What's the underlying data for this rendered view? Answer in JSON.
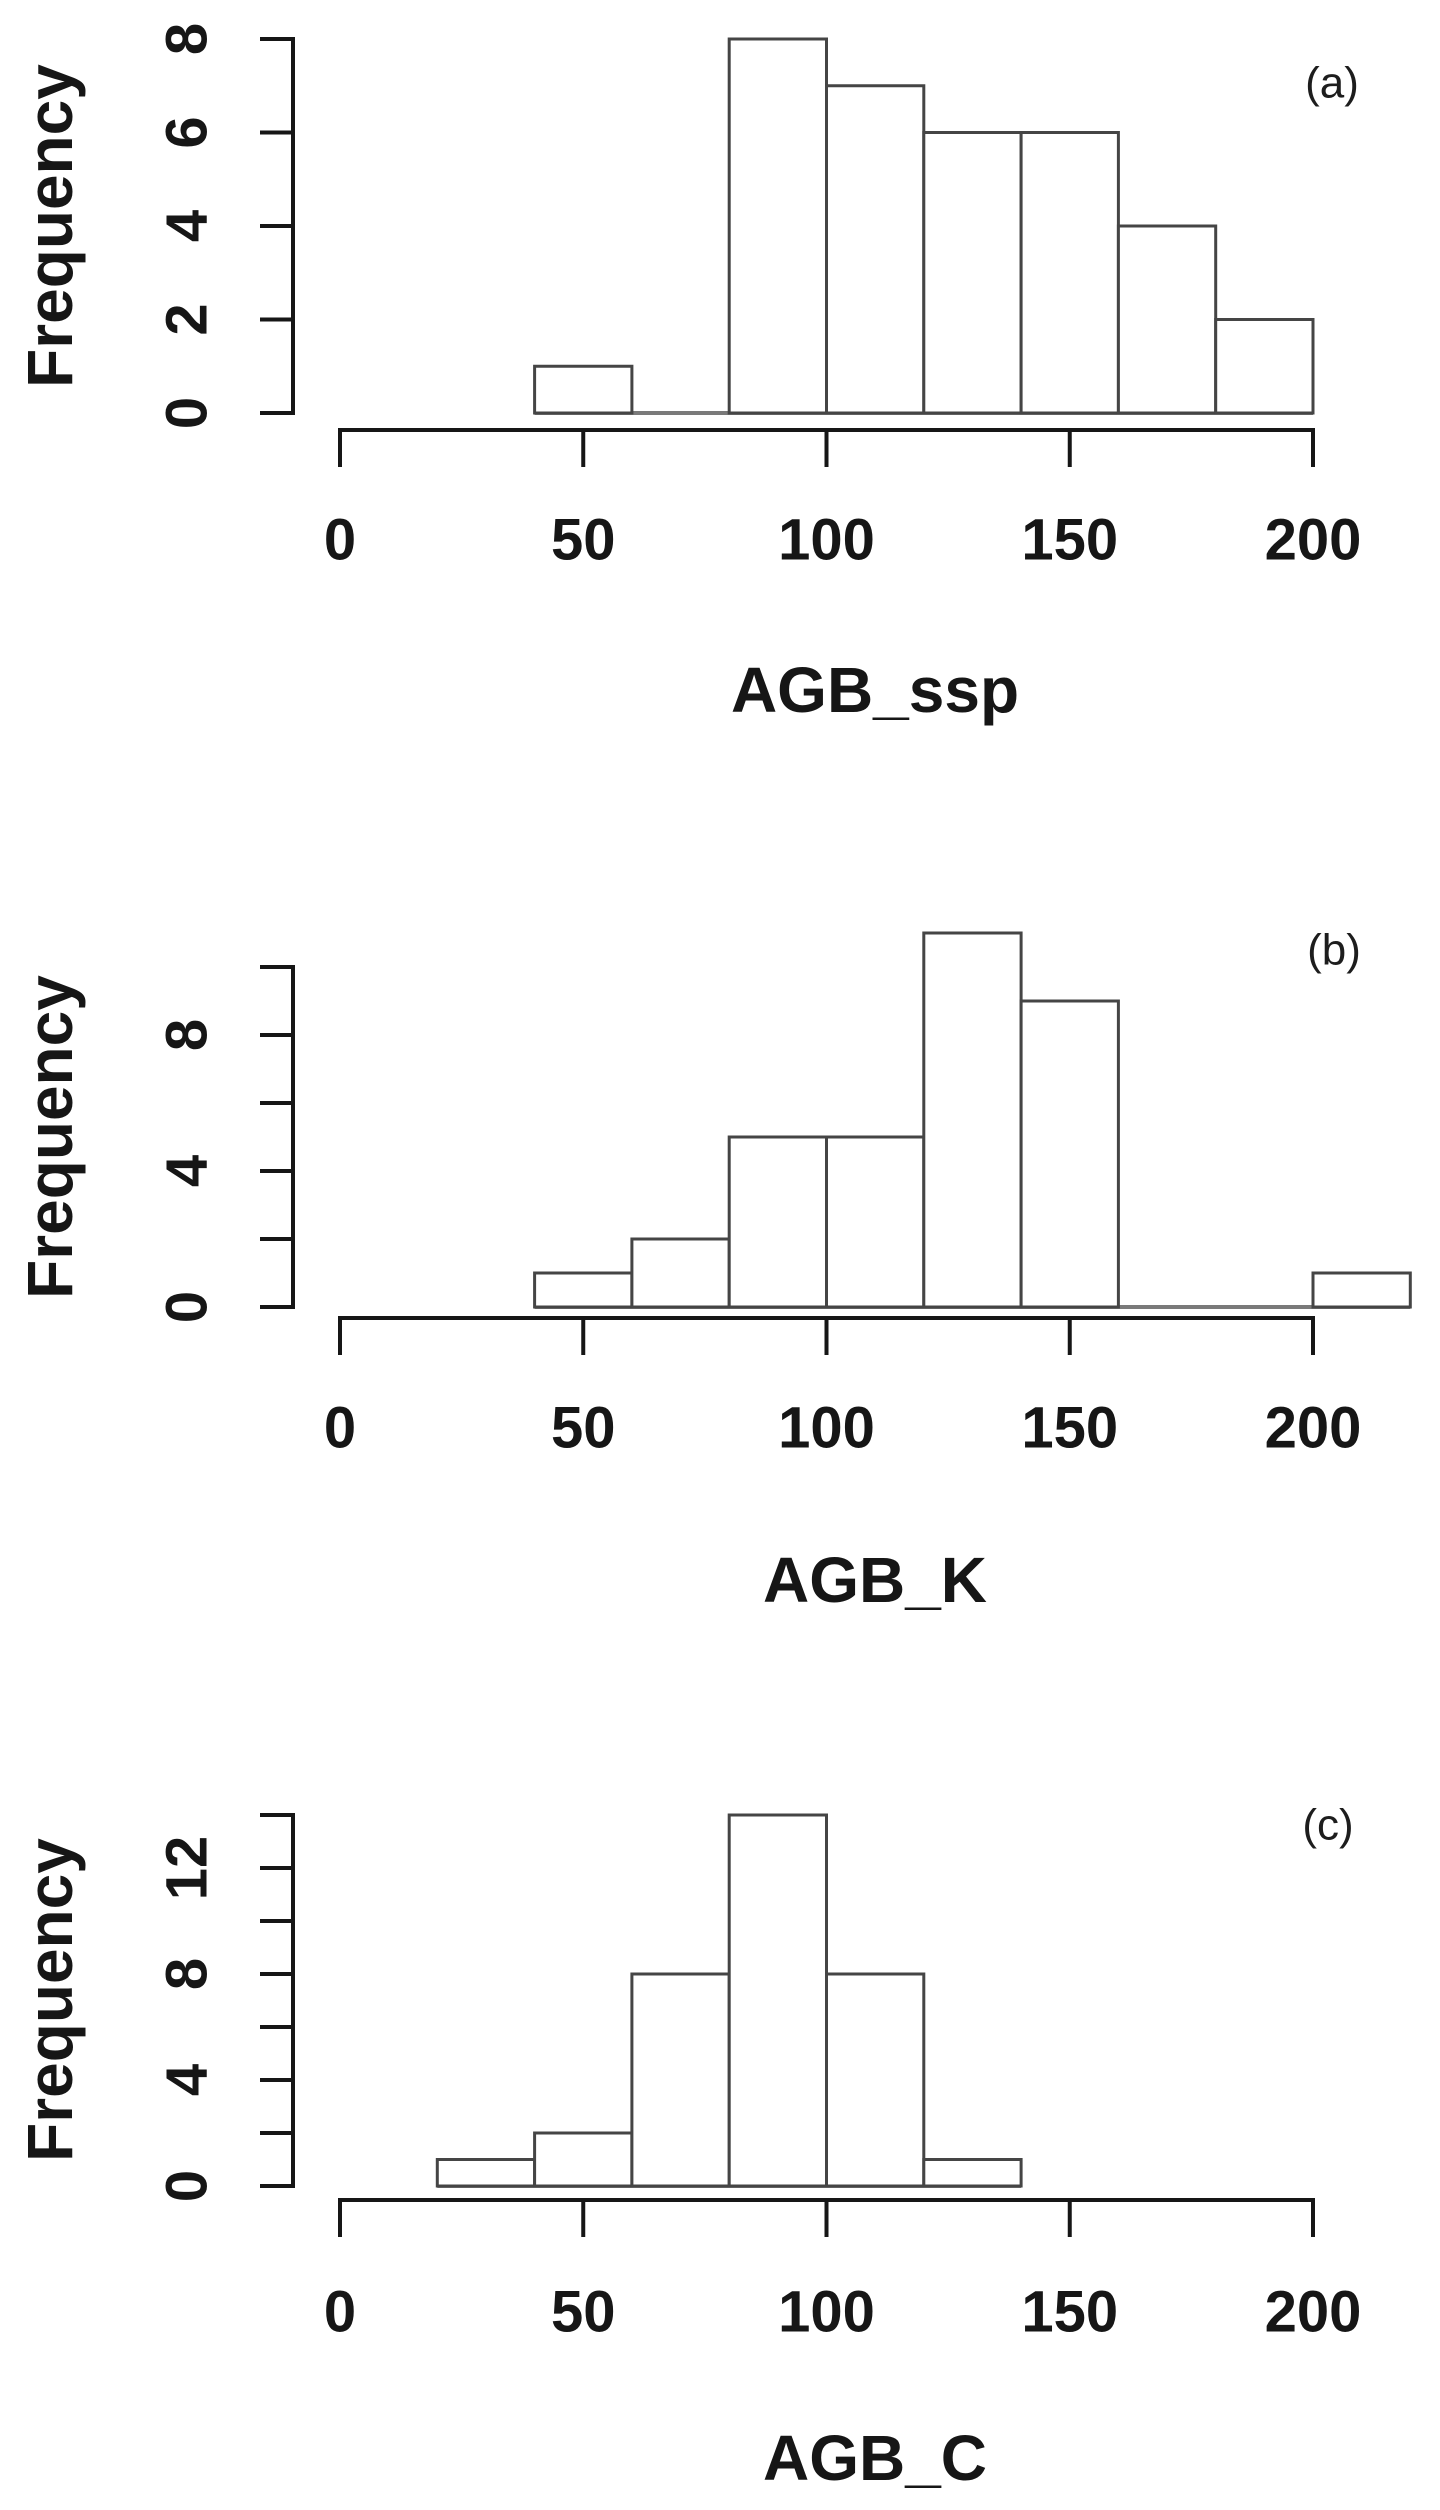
{
  "figure": {
    "background": "#ffffff",
    "axis_color": "#161616",
    "bar_stroke": "#454545",
    "bar_fill": "#ffffff",
    "baseline_color": "#7a7a7a",
    "text_color": "#161616"
  },
  "chart_data": [
    {
      "id": "a",
      "type": "bar",
      "panel_label": "(a)",
      "title": "",
      "xlabel": "AGB_ssp",
      "ylabel": "Frequency",
      "bin_width": 20,
      "bins": [
        {
          "from": 40,
          "to": 60,
          "count": 1
        },
        {
          "from": 60,
          "to": 80,
          "count": 0
        },
        {
          "from": 80,
          "to": 100,
          "count": 8
        },
        {
          "from": 100,
          "to": 120,
          "count": 7
        },
        {
          "from": 120,
          "to": 140,
          "count": 6
        },
        {
          "from": 140,
          "to": 160,
          "count": 6
        },
        {
          "from": 160,
          "to": 180,
          "count": 4
        },
        {
          "from": 180,
          "to": 200,
          "count": 2
        }
      ],
      "x_ticks": [
        0,
        50,
        100,
        150,
        200
      ],
      "y_ticks": [
        0,
        2,
        4,
        6,
        8
      ],
      "y_labeled_ticks": [
        0,
        2,
        4,
        6,
        8
      ],
      "xlim": [
        0,
        200
      ],
      "ylim": [
        0,
        8
      ],
      "data_range": [
        40,
        200
      ],
      "grid": false,
      "legend": "none"
    },
    {
      "id": "b",
      "type": "bar",
      "panel_label": "(b)",
      "title": "",
      "xlabel": "AGB_K",
      "ylabel": "Frequency",
      "bin_width": 20,
      "bins": [
        {
          "from": 40,
          "to": 60,
          "count": 1
        },
        {
          "from": 60,
          "to": 80,
          "count": 2
        },
        {
          "from": 80,
          "to": 100,
          "count": 5
        },
        {
          "from": 100,
          "to": 120,
          "count": 5
        },
        {
          "from": 120,
          "to": 140,
          "count": 11
        },
        {
          "from": 140,
          "to": 160,
          "count": 9
        },
        {
          "from": 160,
          "to": 180,
          "count": 0
        },
        {
          "from": 180,
          "to": 200,
          "count": 0
        },
        {
          "from": 200,
          "to": 220,
          "count": 1
        }
      ],
      "x_ticks": [
        0,
        50,
        100,
        150,
        200
      ],
      "y_ticks": [
        0,
        2,
        4,
        6,
        8,
        10
      ],
      "y_labeled_ticks": [
        0,
        4,
        8
      ],
      "xlim": [
        0,
        220
      ],
      "ylim": [
        0,
        11
      ],
      "data_range": [
        40,
        220
      ],
      "grid": false,
      "legend": "none"
    },
    {
      "id": "c",
      "type": "bar",
      "panel_label": "(c)",
      "title": "",
      "xlabel": "AGB_C",
      "ylabel": "Frequency",
      "bin_width": 20,
      "bins": [
        {
          "from": 20,
          "to": 40,
          "count": 1
        },
        {
          "from": 40,
          "to": 60,
          "count": 2
        },
        {
          "from": 60,
          "to": 80,
          "count": 8
        },
        {
          "from": 80,
          "to": 100,
          "count": 14
        },
        {
          "from": 100,
          "to": 120,
          "count": 8
        },
        {
          "from": 120,
          "to": 140,
          "count": 1
        }
      ],
      "x_ticks": [
        0,
        50,
        100,
        150,
        200
      ],
      "y_ticks": [
        0,
        2,
        4,
        6,
        8,
        10,
        12,
        14
      ],
      "y_labeled_ticks": [
        0,
        4,
        8,
        12
      ],
      "xlim": [
        0,
        200
      ],
      "ylim": [
        0,
        14
      ],
      "data_range": [
        20,
        140
      ],
      "grid": false,
      "legend": "none"
    }
  ]
}
